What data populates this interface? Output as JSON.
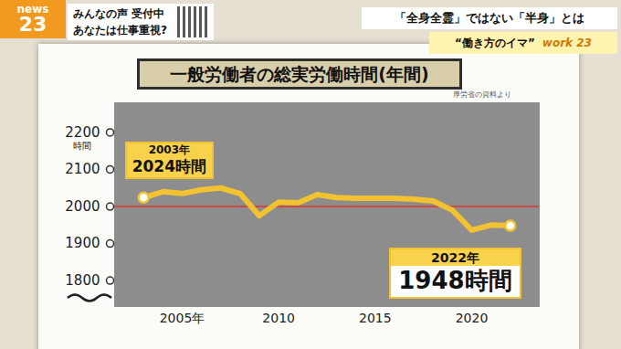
{
  "chart_data": {
    "type": "line",
    "title": "一般労働者の総実労働時間(年間)",
    "note": "厚労省の資料より",
    "y_label": "時間",
    "x": [
      2003,
      2004,
      2005,
      2006,
      2007,
      2008,
      2009,
      2010,
      2011,
      2012,
      2013,
      2014,
      2015,
      2016,
      2017,
      2018,
      2019,
      2020,
      2021,
      2022
    ],
    "series": [
      {
        "color": "#f2c230",
        "values": [
          2024,
          2040,
          2035,
          2045,
          2050,
          2035,
          1975,
          2012,
          2010,
          2032,
          2024,
          2022,
          2022,
          2022,
          2020,
          2015,
          1990,
          1936,
          1950,
          1948
        ]
      }
    ],
    "xlim": [
      2001.5,
      2023.5
    ],
    "xticks": [
      {
        "value": 2005,
        "label": "2005年"
      },
      2010,
      2015,
      2020
    ],
    "ylim": [
      1730,
      2280
    ],
    "yticks": [
      1800,
      1900,
      2000,
      2100,
      2200
    ],
    "grid": false,
    "rule": {
      "y": 2000,
      "color": "#e0362c"
    },
    "annotations": [
      {
        "x": 2003,
        "text": [
          "2003年",
          "2024時間"
        ]
      },
      {
        "x": 2022,
        "text": [
          "2022年",
          "1948時間"
        ]
      }
    ]
  },
  "screen": {
    "logo": [
      "news",
      "23"
    ],
    "banner": [
      "みんなの声 受付中",
      "あなたは仕事重視?"
    ],
    "headline": "「全身全霊」ではない「半身」とは",
    "segment": [
      "“働き方のイマ”",
      "work 23"
    ]
  }
}
